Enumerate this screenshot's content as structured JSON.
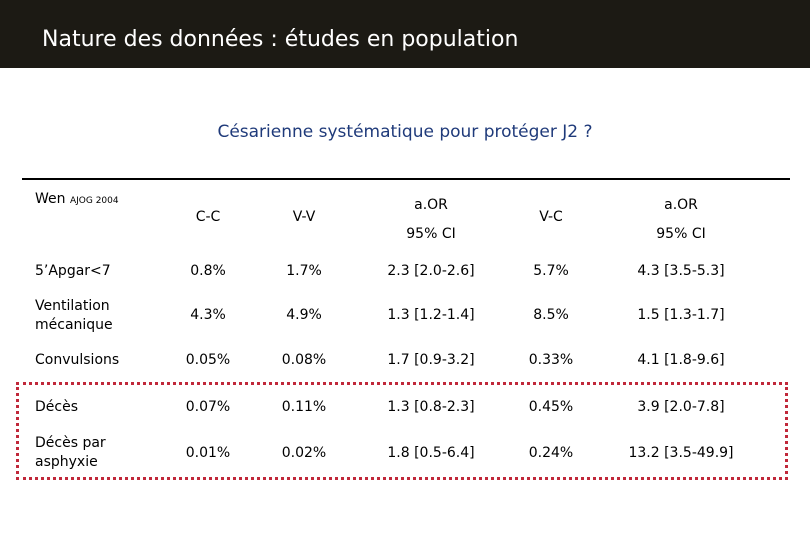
{
  "slide": {
    "title": "Nature des données : études en population",
    "subtitle": "Césarienne systématique pour protéger J2 ?"
  },
  "table": {
    "source_main": "Wen",
    "source_small": "AJOG 2004",
    "headers": {
      "cc": "C-C",
      "vv": "V-V",
      "aor1": "a.OR",
      "ci1": "95% CI",
      "vc": "V-C",
      "aor2": "a.OR",
      "ci2": "95% CI"
    },
    "rows": [
      {
        "label": "5’Apgar<7",
        "cc": "0.8%",
        "vv": "1.7%",
        "aor1": "2.3 [2.0-2.6]",
        "vc": "5.7%",
        "aor2": "4.3 [3.5-5.3]"
      },
      {
        "label_line1": "Ventilation",
        "label_line2": "mécanique",
        "cc": "4.3%",
        "vv": "4.9%",
        "aor1": "1.3 [1.2-1.4]",
        "vc": "8.5%",
        "aor2": "1.5 [1.3-1.7]"
      },
      {
        "label": "Convulsions",
        "cc": "0.05%",
        "vv": "0.08%",
        "aor1": "1.7 [0.9-3.2]",
        "vc": "0.33%",
        "aor2": "4.1 [1.8-9.6]"
      },
      {
        "label": "Décès",
        "cc": "0.07%",
        "vv": "0.11%",
        "aor1": "1.3 [0.8-2.3]",
        "vc": "0.45%",
        "aor2": "3.9 [2.0-7.8]"
      },
      {
        "label_line1": "Décès par",
        "label_line2": "asphyxie",
        "cc": "0.01%",
        "vv": "0.02%",
        "aor1": "1.8 [0.5-6.4]",
        "vc": "0.24%",
        "aor2": "13.2 [3.5-49.9]"
      }
    ]
  },
  "colors": {
    "title_bar": "#1c1a14",
    "subtitle": "#1f3a7a",
    "highlight_border": "#c0283a"
  }
}
